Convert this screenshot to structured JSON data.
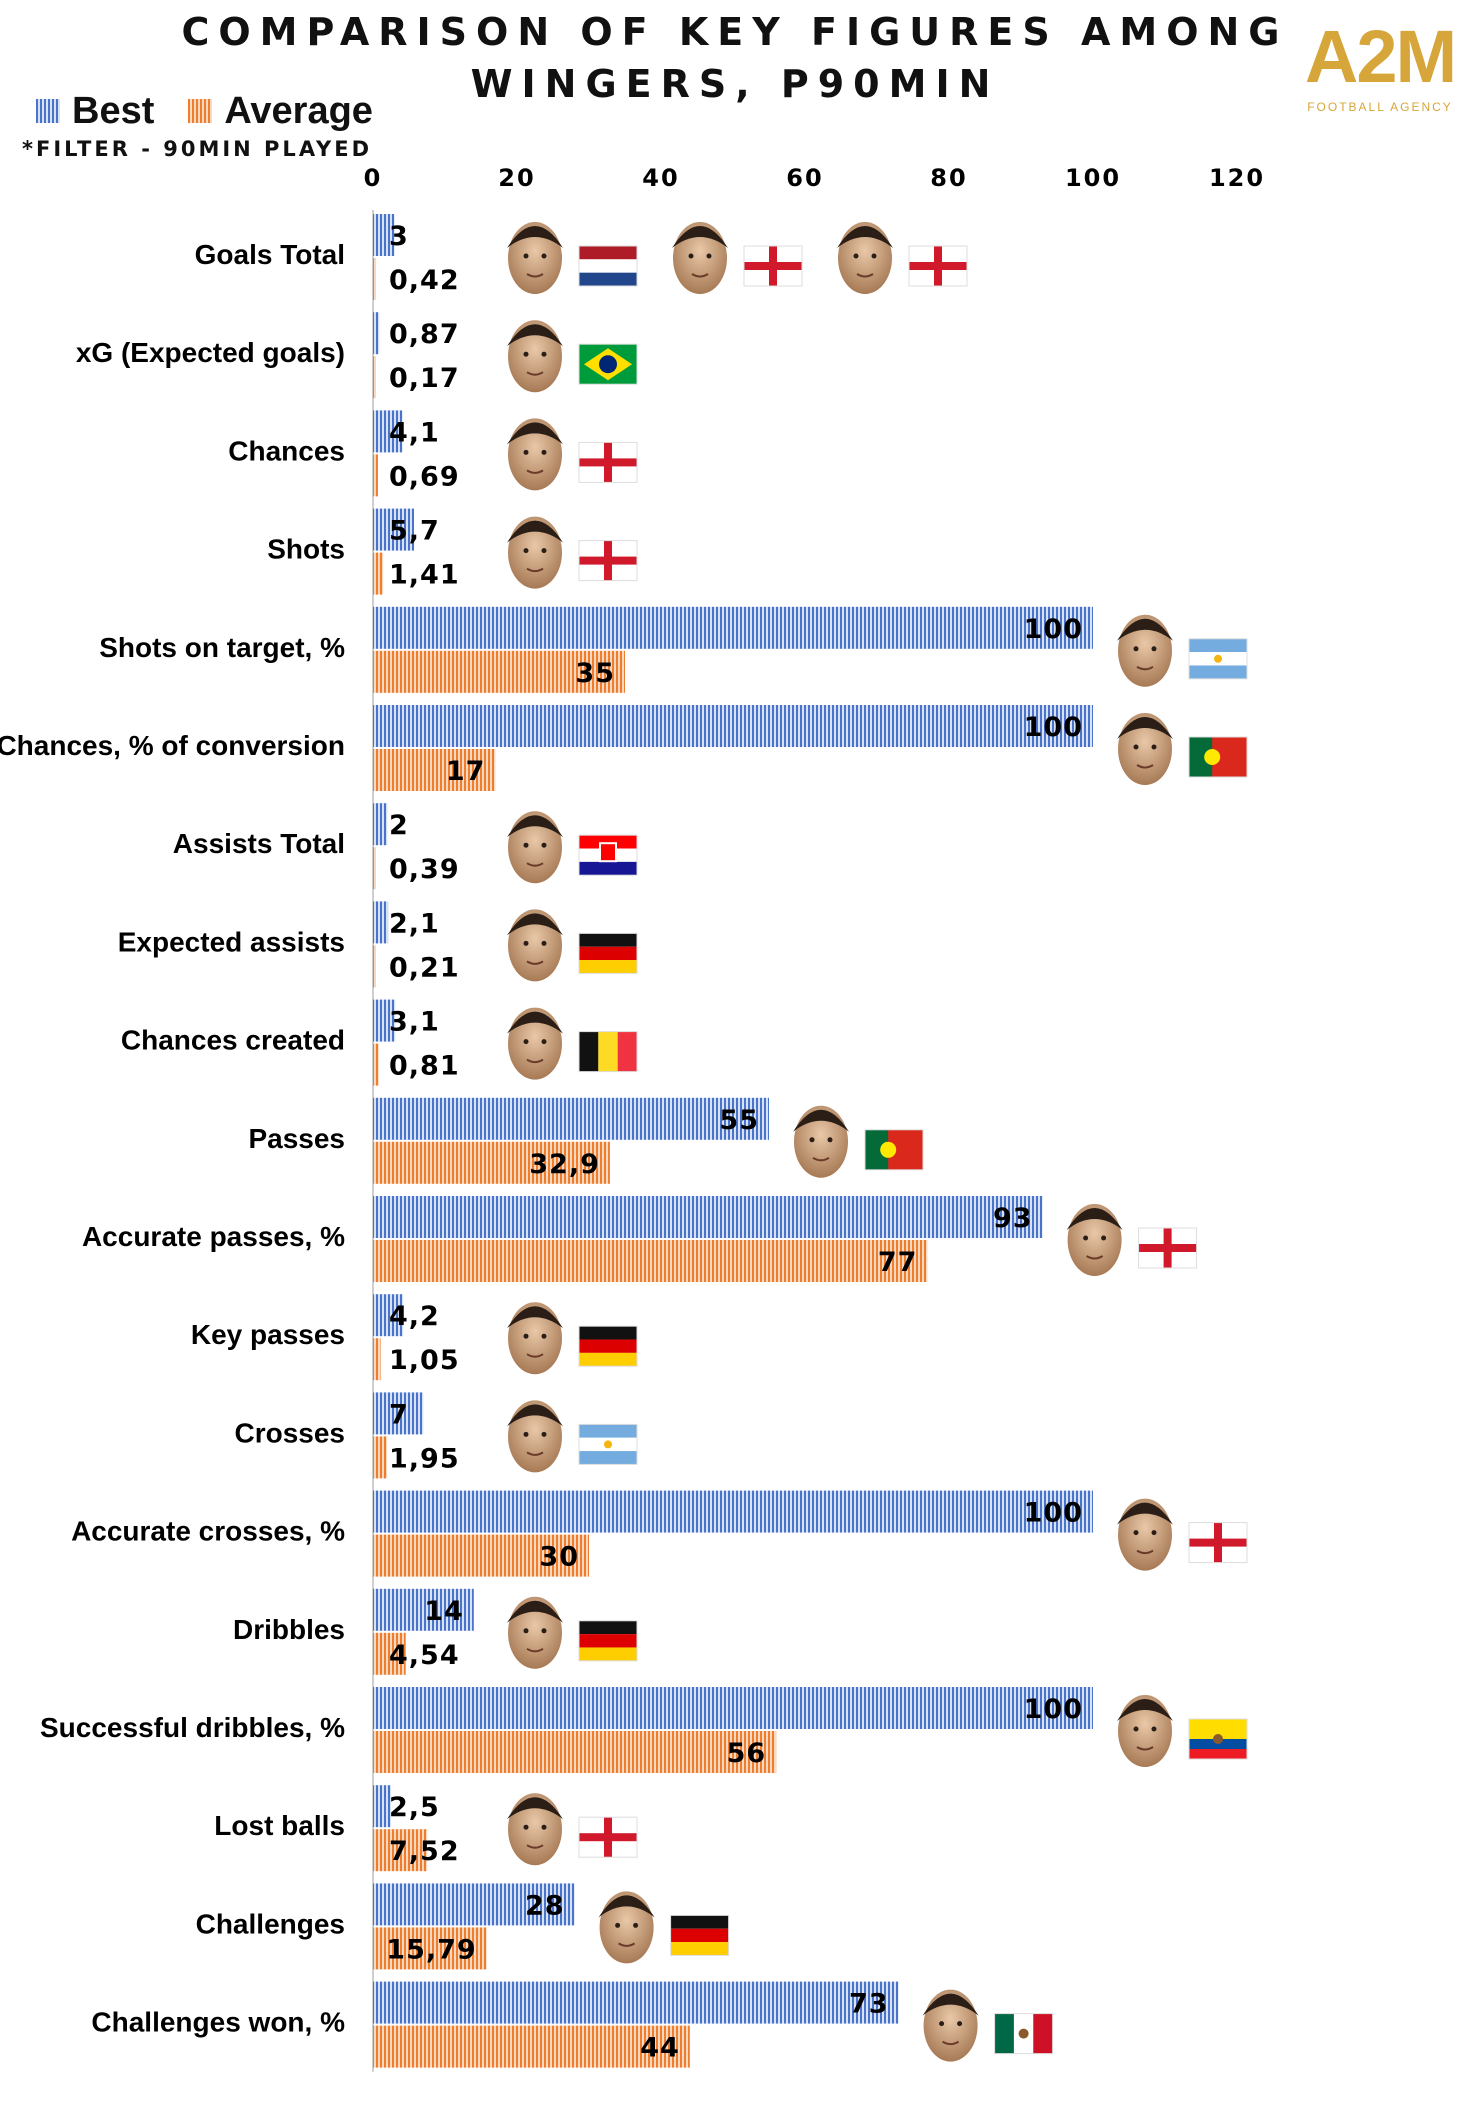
{
  "title_line1": "Comparison of key figures among",
  "title_line2": "wingers, P90min",
  "logo": {
    "text": "A2M",
    "subtitle": "FOOTBALL AGENCY"
  },
  "legend": {
    "best": "Best",
    "average": "Average"
  },
  "filter_note": "*Filter - 90min played",
  "colors": {
    "best": "#4a73cc",
    "average": "#ef7d2e"
  },
  "chart_data": {
    "type": "bar",
    "orientation": "horizontal",
    "title": "Comparison of key figures among wingers, P90min",
    "xlim": [
      0,
      120
    ],
    "xticks": [
      "0",
      "20",
      "40",
      "60",
      "80",
      "100",
      "120"
    ],
    "legend_position": "top-left",
    "grid": false,
    "categories": [
      "Goals Total",
      "xG (Expected goals)",
      "Chances",
      "Shots",
      "Shots on target, %",
      "Chances, % of conversion",
      "Assists Total",
      "Expected assists",
      "Chances created",
      "Passes",
      "Accurate passes, %",
      "Key passes",
      "Crosses",
      "Accurate crosses, %",
      "Dribbles",
      "Successful dribbles, %",
      "Lost balls",
      "Challenges",
      "Challenges won, %"
    ],
    "series": [
      {
        "name": "Best",
        "values": [
          3,
          0.87,
          4.1,
          5.7,
          100,
          100,
          2,
          2.1,
          3.1,
          55,
          93,
          4.2,
          7,
          100,
          14,
          100,
          2.5,
          28,
          73
        ],
        "labels": [
          "3",
          "0,87",
          "4,1",
          "5,7",
          "100",
          "100",
          "2",
          "2,1",
          "3,1",
          "55",
          "93",
          "4,2",
          "7",
          "100",
          "14",
          "100",
          "2,5",
          "28",
          "73"
        ]
      },
      {
        "name": "Average",
        "values": [
          0.42,
          0.17,
          0.69,
          1.41,
          35,
          17,
          0.39,
          0.21,
          0.81,
          32.9,
          77,
          1.05,
          1.95,
          30,
          4.54,
          56,
          7.52,
          15.79,
          44
        ],
        "labels": [
          "0,42",
          "0,17",
          "0,69",
          "1,41",
          "35",
          "17",
          "0,39",
          "0,21",
          "0,81",
          "32,9",
          "77",
          "1,05",
          "1,95",
          "30",
          "4,54",
          "56",
          "7,52",
          "15,79",
          "44"
        ]
      }
    ],
    "players": [
      [
        {
          "flag": "netherlands"
        },
        {
          "flag": "england"
        },
        {
          "flag": "england"
        }
      ],
      [
        {
          "flag": "brazil"
        }
      ],
      [
        {
          "flag": "england"
        }
      ],
      [
        {
          "flag": "england"
        }
      ],
      [
        {
          "flag": "argentina"
        }
      ],
      [
        {
          "flag": "portugal"
        }
      ],
      [
        {
          "flag": "croatia"
        }
      ],
      [
        {
          "flag": "germany"
        }
      ],
      [
        {
          "flag": "belgium"
        }
      ],
      [
        {
          "flag": "portugal"
        }
      ],
      [
        {
          "flag": "england"
        }
      ],
      [
        {
          "flag": "germany"
        }
      ],
      [
        {
          "flag": "argentina"
        }
      ],
      [
        {
          "flag": "england"
        }
      ],
      [
        {
          "flag": "germany"
        }
      ],
      [
        {
          "flag": "ecuador"
        }
      ],
      [
        {
          "flag": "england"
        }
      ],
      [
        {
          "flag": "germany"
        }
      ],
      [
        {
          "flag": "mexico"
        }
      ]
    ]
  }
}
